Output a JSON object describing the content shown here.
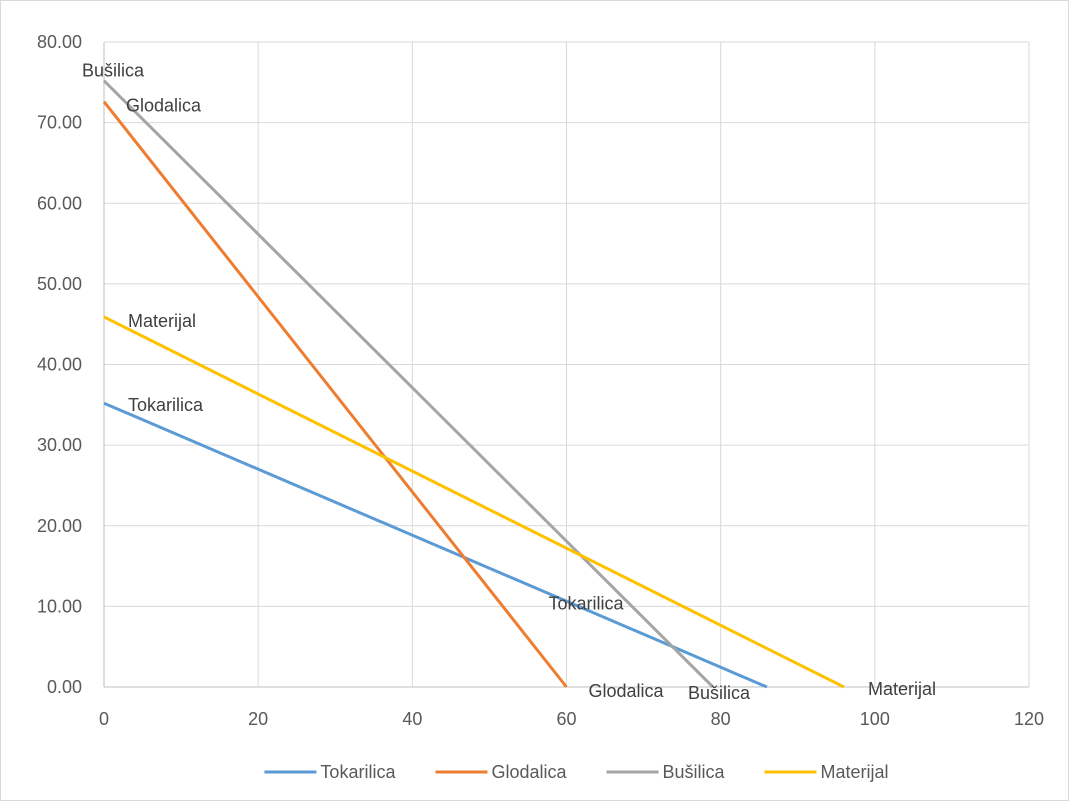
{
  "chart_data": {
    "type": "line",
    "title": "",
    "xlabel": "",
    "ylabel": "",
    "xlim": [
      0,
      120
    ],
    "ylim": [
      0,
      80
    ],
    "x_ticks": [
      0,
      20,
      40,
      60,
      80,
      100,
      120
    ],
    "y_ticks": [
      "0.00",
      "10.00",
      "20.00",
      "30.00",
      "40.00",
      "50.00",
      "60.00",
      "70.00",
      "80.00"
    ],
    "grid": true,
    "legend_position": "bottom",
    "series": [
      {
        "name": "Tokarilica",
        "color": "#5B9BD5",
        "x": [
          0,
          86
        ],
        "y": [
          35.2,
          0
        ],
        "labels": [
          {
            "text": "Tokarilica",
            "x": 0,
            "y": 35.2
          },
          {
            "text": "Tokarilica",
            "x": 60,
            "y": 10.6
          }
        ]
      },
      {
        "name": "Glodalica",
        "color": "#ED7D31",
        "x": [
          0,
          60
        ],
        "y": [
          72.6,
          0
        ],
        "labels": [
          {
            "text": "Glodalica",
            "x": 0,
            "y": 72.6
          },
          {
            "text": "Glodalica",
            "x": 60,
            "y": 0
          }
        ]
      },
      {
        "name": "Bušilica",
        "color": "#A5A5A5",
        "x": [
          0,
          79
        ],
        "y": [
          75.2,
          0
        ],
        "labels": [
          {
            "text": "Bušilica",
            "x": 0,
            "y": 75.2
          },
          {
            "text": "Bušilica",
            "x": 79,
            "y": 0
          }
        ]
      },
      {
        "name": "Materijal",
        "color": "#FFC000",
        "x": [
          0,
          96
        ],
        "y": [
          45.9,
          0
        ],
        "labels": [
          {
            "text": "Materijal",
            "x": 0,
            "y": 45.9
          },
          {
            "text": "Materijal",
            "x": 96,
            "y": 0
          }
        ]
      }
    ]
  }
}
